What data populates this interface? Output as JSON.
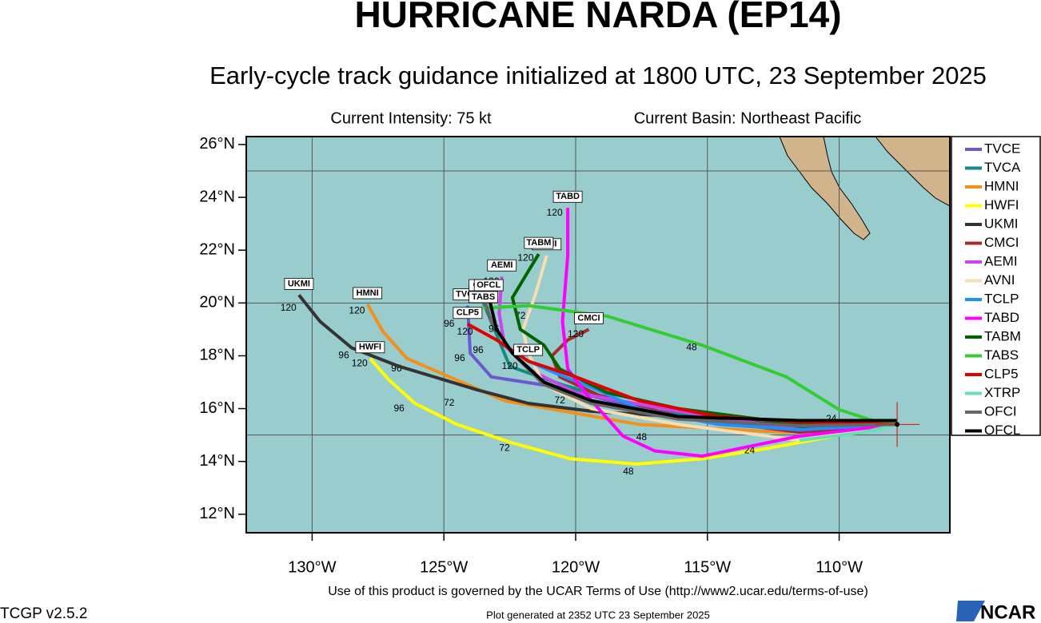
{
  "header": {
    "title": "HURRICANE NARDA (EP14)",
    "subtitle": "Early-cycle track guidance initialized at 1800 UTC, 23 September 2025",
    "intensity": "Current Intensity: 75 kt",
    "basin": "Current Basin: Northeast Pacific"
  },
  "map": {
    "xlim": [
      -132.5,
      -105.8
    ],
    "ylim": [
      11.3,
      26.3
    ],
    "xticks": [
      {
        "value": -130,
        "label": "130°W"
      },
      {
        "value": -125,
        "label": "125°W"
      },
      {
        "value": -120,
        "label": "120°W"
      },
      {
        "value": -115,
        "label": "115°W"
      },
      {
        "value": -110,
        "label": "110°W"
      }
    ],
    "yticks": [
      {
        "value": 12,
        "label": "12°N"
      },
      {
        "value": 14,
        "label": "14°N"
      },
      {
        "value": 16,
        "label": "16°N"
      },
      {
        "value": 18,
        "label": "18°N"
      },
      {
        "value": 20,
        "label": "20°N"
      },
      {
        "value": 22,
        "label": "22°N"
      },
      {
        "value": 24,
        "label": "24°N"
      },
      {
        "value": 26,
        "label": "26°N"
      }
    ],
    "grid_lons": [
      -130,
      -125,
      -120,
      -115,
      -110
    ],
    "grid_lats": [
      15,
      20,
      25
    ],
    "origin": {
      "lon": -107.8,
      "lat": 15.4,
      "color": "#e0201b"
    },
    "tracks": [
      {
        "name": "TVCE",
        "color": "#6a5acd",
        "lon": [
          -107.8,
          -111.5,
          -117.6,
          -120.6,
          -123.2,
          -124.0,
          -124.1
        ],
        "lat": [
          15.4,
          15.2,
          16.0,
          16.8,
          17.2,
          18.1,
          19.9
        ],
        "hour_labels": [
          {
            "text": "96",
            "lon": -124.4,
            "lat": 17.9
          }
        ]
      },
      {
        "name": "TVCA",
        "color": "#138a82",
        "lon": [
          -107.8,
          -112.0,
          -117.0,
          -120.5,
          -122.5,
          -123.5
        ],
        "lat": [
          15.4,
          15.2,
          15.9,
          16.9,
          17.6,
          20.0
        ],
        "hour_labels": [
          {
            "text": "72",
            "lon": -120.6,
            "lat": 16.3
          }
        ]
      },
      {
        "name": "HMNI",
        "color": "#f39019",
        "lon": [
          -107.8,
          -112.0,
          -117.6,
          -122.7,
          -126.4,
          -127.3,
          -127.9
        ],
        "lat": [
          15.4,
          15.1,
          15.4,
          16.3,
          17.9,
          18.9,
          19.95
        ],
        "hour_labels": [
          {
            "text": "120",
            "lon": -128.3,
            "lat": 19.7
          },
          {
            "text": "96",
            "lon": -126.8,
            "lat": 17.5
          },
          {
            "text": "72",
            "lon": -124.8,
            "lat": 16.2
          }
        ]
      },
      {
        "name": "HWFI",
        "color": "#ffff00",
        "lon": [
          -107.8,
          -112.7,
          -115.2,
          -117.7,
          -120.2,
          -122.4,
          -124.5,
          -126.1,
          -127.1,
          -127.8
        ],
        "lat": [
          15.4,
          14.5,
          14.1,
          13.9,
          14.1,
          14.7,
          15.4,
          16.2,
          17.1,
          17.9
        ],
        "hour_labels": [
          {
            "text": "120",
            "lon": -128.2,
            "lat": 17.7
          },
          {
            "text": "96",
            "lon": -126.7,
            "lat": 16.0
          },
          {
            "text": "72",
            "lon": -122.7,
            "lat": 14.5
          },
          {
            "text": "48",
            "lon": -118.0,
            "lat": 13.6
          },
          {
            "text": "24",
            "lon": -113.4,
            "lat": 14.4
          }
        ]
      },
      {
        "name": "UKMI",
        "color": "#333333",
        "lon": [
          -107.8,
          -110.0,
          -114.6,
          -119.4,
          -121.8,
          -123.7,
          -126.7,
          -128.5,
          -129.7,
          -130.5
        ],
        "lat": [
          15.4,
          15.2,
          15.6,
          15.9,
          16.2,
          16.7,
          17.6,
          18.3,
          19.3,
          20.3
        ],
        "hour_labels": [
          {
            "text": "120",
            "lon": -130.9,
            "lat": 19.8
          },
          {
            "text": "96",
            "lon": -128.8,
            "lat": 18.0
          }
        ]
      },
      {
        "name": "CMCI",
        "color": "#a52a2a",
        "lon": [
          -107.8,
          -111.5,
          -116.1,
          -119.1,
          -120.6,
          -120.9,
          -120.3,
          -119.5
        ],
        "lat": [
          15.4,
          15.1,
          15.7,
          16.5,
          17.2,
          18.0,
          18.6,
          19.0
        ],
        "hour_labels": [
          {
            "text": "120",
            "lon": -120.0,
            "lat": 18.8
          }
        ]
      },
      {
        "name": "AEMI",
        "color": "#cc44ee",
        "lon": [
          -107.8,
          -111.5,
          -116.1,
          -120.0,
          -121.8,
          -122.7,
          -122.9,
          -122.8
        ],
        "lat": [
          15.4,
          15.2,
          15.9,
          16.6,
          17.5,
          18.4,
          19.6,
          21.0
        ],
        "hour_labels": [
          {
            "text": "120",
            "lon": -123.2,
            "lat": 20.8
          }
        ]
      },
      {
        "name": "AVNI",
        "color": "#f5deb3",
        "lon": [
          -107.8,
          -111.5,
          -116.1,
          -119.4,
          -121.2,
          -121.8,
          -122.0,
          -121.5,
          -121.1
        ],
        "lat": [
          15.4,
          14.8,
          15.4,
          16.0,
          16.9,
          18.1,
          19.0,
          20.4,
          21.8
        ],
        "hour_labels": [
          {
            "text": "72",
            "lon": -122.1,
            "lat": 19.5
          }
        ]
      },
      {
        "name": "TCLP",
        "color": "#1e90ff",
        "lon": [
          -107.8,
          -111.5,
          -114.6,
          -117.6,
          -119.4,
          -120.9,
          -121.8
        ],
        "lat": [
          15.4,
          15.2,
          15.4,
          16.0,
          16.8,
          17.4,
          17.8
        ],
        "hour_labels": [
          {
            "text": "120",
            "lon": -122.5,
            "lat": 17.6
          }
        ]
      },
      {
        "name": "TABD",
        "color": "#ff00ff",
        "lon": [
          -107.8,
          -111.5,
          -115.2,
          -117.0,
          -118.2,
          -119.4,
          -120.3,
          -120.5,
          -120.3,
          -120.3
        ],
        "lat": [
          15.4,
          14.96,
          14.2,
          14.4,
          14.96,
          16.3,
          17.5,
          19.3,
          21.8,
          23.6
        ],
        "hour_labels": [
          {
            "text": "120",
            "lon": -120.8,
            "lat": 23.4
          },
          {
            "text": "48",
            "lon": -117.5,
            "lat": 14.9
          }
        ]
      },
      {
        "name": "TABM",
        "color": "#006400",
        "lon": [
          -107.8,
          -111.5,
          -116.1,
          -118.8,
          -120.6,
          -121.2,
          -122.1,
          -122.4,
          -121.8,
          -121.4
        ],
        "lat": [
          15.4,
          15.4,
          16.0,
          16.6,
          17.5,
          18.4,
          19.0,
          20.2,
          21.2,
          21.85
        ],
        "hour_labels": [
          {
            "text": "120",
            "lon": -121.9,
            "lat": 21.7
          }
        ]
      },
      {
        "name": "TABS",
        "color": "#33cc33",
        "lon": [
          -107.8,
          -108.8,
          -110.0,
          -112.0,
          -115.2,
          -118.8,
          -121.8,
          -123.5
        ],
        "lat": [
          15.4,
          15.57,
          15.96,
          17.2,
          18.4,
          19.5,
          19.9,
          19.8
        ],
        "hour_labels": [
          {
            "text": "48",
            "lon": -115.6,
            "lat": 18.3
          },
          {
            "text": "24",
            "lon": -110.3,
            "lat": 15.6
          }
        ]
      },
      {
        "name": "CLP5",
        "color": "#e00000",
        "lon": [
          -107.8,
          -111.5,
          -114.6,
          -117.6,
          -120.0,
          -121.8,
          -123.0,
          -124.1
        ],
        "lat": [
          15.4,
          15.5,
          15.7,
          16.3,
          17.2,
          17.8,
          18.6,
          19.2
        ],
        "hour_labels": [
          {
            "text": "96",
            "lon": -124.8,
            "lat": 19.2
          },
          {
            "text": "120",
            "lon": -124.2,
            "lat": 18.9
          }
        ]
      },
      {
        "name": "XTRP",
        "color": "#66e0b0",
        "lon": [
          -107.8,
          -109.1,
          -111.5
        ],
        "lat": [
          15.4,
          15.1,
          14.8
        ],
        "hour_labels": []
      },
      {
        "name": "OFCI",
        "color": "#666666",
        "lon": [
          -107.8,
          -111.5,
          -116.1,
          -119.4,
          -121.2,
          -122.4,
          -123.2,
          -123.5
        ],
        "lat": [
          15.4,
          15.35,
          15.6,
          16.2,
          16.9,
          18.1,
          19.3,
          20.25
        ],
        "hour_labels": [
          {
            "text": "96",
            "lon": -123.7,
            "lat": 18.2
          }
        ]
      },
      {
        "name": "OFCL",
        "color": "#000000",
        "lon": [
          -107.8,
          -111.5,
          -116.1,
          -119.4,
          -121.2,
          -122.4,
          -123.0,
          -123.3
        ],
        "lat": [
          15.55,
          15.55,
          15.7,
          16.3,
          17.0,
          18.1,
          19.0,
          20.25
        ],
        "hour_labels": [
          {
            "text": "120",
            "lon": -123.7,
            "lat": 20.2
          },
          {
            "text": "96",
            "lon": -123.1,
            "lat": 19.0
          }
        ]
      }
    ]
  },
  "footer": {
    "terms": "Use of this product is governed by the UCAR Terms of Use (http://www2.ucar.edu/terms-of-use)",
    "version": "TCGP v2.5.2",
    "generated": "Plot generated at 2352 UTC   23 September 2025",
    "logo": "NCAR"
  }
}
